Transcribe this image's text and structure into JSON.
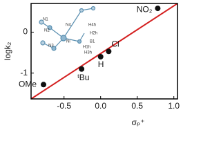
{
  "chart_data": {
    "type": "scatter",
    "xlabel": "σₚ⁺",
    "ylabel": "logk₂",
    "x": [
      0.78,
      0.11,
      0.0,
      -0.26,
      -0.78
    ],
    "values": [
      0.58,
      -0.47,
      -0.6,
      -0.9,
      -1.28
    ],
    "point_labels": [
      "NO₂",
      "Cl",
      "H",
      "ᵗBu",
      "OMe"
    ],
    "color": "#111111",
    "line": {
      "x": [
        -0.95,
        1.05
      ],
      "y": [
        -1.63,
        0.7
      ],
      "color": "#d42020"
    },
    "xlim": [
      -0.95,
      1.05
    ],
    "ylim": [
      -1.63,
      0.7
    ],
    "xticks": [
      -0.5,
      {
        "value": 0,
        "label": "0.0"
      },
      0.5,
      {
        "value": 1,
        "label": "1.0"
      }
    ],
    "yticks": [
      -1,
      0
    ],
    "inset_labels": [
      "N1",
      "N2",
      "N3",
      "N4",
      "Ni",
      "H2h",
      "H4h",
      "H1h",
      "H3h",
      "B1"
    ]
  }
}
